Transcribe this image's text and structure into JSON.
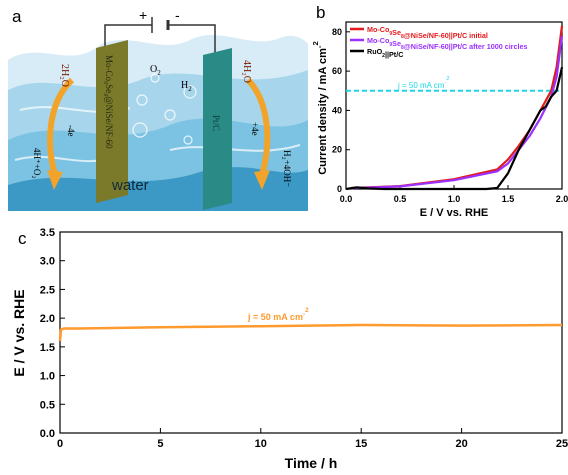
{
  "panel_a": {
    "letter": "a",
    "plus": "+",
    "minus": "-",
    "water": "water",
    "o2": "O",
    "o2_sub": "2",
    "h2": "H",
    "h2_sub": "2",
    "left_electrode": "Mo-Co₉Se₈@NiSe/NF-60",
    "right_electrode": "Pt/C",
    "left_top_molecule": "2H₂O",
    "left_electron": "-4e",
    "left_product": "4H⁺+O₂",
    "right_top_molecule": "4H₂O",
    "right_electron": "+4e",
    "right_product": "H₂+4OH⁻"
  },
  "colors": {
    "red": "#e31a1c",
    "purple": "#9b30ff",
    "black": "#000000",
    "cyan": "#1fd7e6",
    "orange": "#ff9a2e",
    "water_light": "#d8ecf7",
    "water_mid": "#7cc3e3",
    "water_dark": "#3c98c4",
    "left_plate": "#7a7a2a",
    "right_plate": "#2a8a86"
  },
  "chart_data": [
    {
      "panel": "b",
      "type": "line",
      "xlabel": "E / V vs. RHE",
      "ylabel": "Current density / mA cm⁻²",
      "xlim": [
        0.0,
        2.0
      ],
      "ylim": [
        0,
        85
      ],
      "xticks": [
        "0.0",
        "0.5",
        "1.0",
        "1.5",
        "2.0"
      ],
      "yticks": [
        "0",
        "20",
        "40",
        "60",
        "80"
      ],
      "legend_position": "top-left",
      "reference_line": {
        "y": 50,
        "label": "j = 50 mA cm⁻²"
      },
      "series": [
        {
          "name": "Mo-Co₉Se₈@NiSe/NF-60||Pt/C initial",
          "color": "#e31a1c",
          "x": [
            0.05,
            0.5,
            1.0,
            1.4,
            1.5,
            1.6,
            1.7,
            1.8,
            1.9,
            1.95,
            2.0
          ],
          "y": [
            0.5,
            1.5,
            5,
            10,
            15,
            22,
            30,
            40,
            50,
            62,
            83
          ]
        },
        {
          "name": "Mo-Co₉Se₈@NiSe/NF-60||Pt/C after 1000 circles",
          "color": "#9b30ff",
          "x": [
            0.05,
            0.5,
            1.0,
            1.4,
            1.5,
            1.6,
            1.7,
            1.8,
            1.9,
            1.95,
            2.0
          ],
          "y": [
            0.4,
            1.3,
            4.5,
            9,
            13,
            20,
            27,
            36,
            47,
            57,
            78
          ]
        },
        {
          "name": "RuO₂||Pt/C",
          "color": "#000000",
          "x": [
            0.0,
            0.1,
            0.2,
            0.35,
            0.5,
            1.0,
            1.3,
            1.4,
            1.5,
            1.6,
            1.7,
            1.8,
            1.85,
            1.9,
            1.95,
            2.0
          ],
          "y": [
            0,
            0.8,
            0.3,
            0,
            0,
            0,
            0,
            0.5,
            8,
            20,
            30,
            40,
            42,
            47,
            50,
            62
          ]
        }
      ]
    },
    {
      "panel": "c",
      "type": "line",
      "xlabel": "Time / h",
      "ylabel": "E / V vs. RHE",
      "xlim": [
        0,
        25
      ],
      "ylim": [
        0.0,
        3.5
      ],
      "xticks": [
        "0",
        "5",
        "10",
        "15",
        "20",
        "25"
      ],
      "yticks": [
        "0.0",
        "0.5",
        "1.0",
        "1.5",
        "2.0",
        "2.5",
        "3.0",
        "3.5"
      ],
      "annotation": "j = 50 mA cm⁻²",
      "series": [
        {
          "color": "#ff9a2e",
          "x": [
            0,
            0.05,
            0.2,
            1,
            5,
            10,
            15,
            20,
            25
          ],
          "y": [
            1.6,
            1.8,
            1.82,
            1.82,
            1.84,
            1.86,
            1.88,
            1.87,
            1.88
          ]
        }
      ]
    }
  ]
}
